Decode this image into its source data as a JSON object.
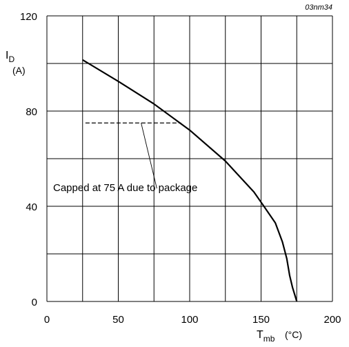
{
  "chart_data": {
    "type": "line",
    "reference": "03nm34",
    "xlabel": {
      "symbol": "T",
      "subscript": "mb",
      "unit": "(°C)"
    },
    "ylabel": {
      "symbol": "I",
      "subscript": "D",
      "unit": "(A)"
    },
    "xlim": [
      0,
      200
    ],
    "ylim": [
      0,
      120
    ],
    "x_ticks": [
      0,
      50,
      100,
      150,
      200
    ],
    "y_ticks": [
      0,
      40,
      80,
      120
    ],
    "x_grid": [
      0,
      25,
      50,
      75,
      100,
      125,
      150,
      175,
      200
    ],
    "y_grid": [
      0,
      20,
      40,
      60,
      80,
      100,
      120
    ],
    "grid": true,
    "series": [
      {
        "x": [
          25,
          50,
          75,
          100,
          125,
          145,
          152,
          160,
          165,
          168,
          170,
          172,
          175
        ],
        "y": [
          101.5,
          92.5,
          83,
          72,
          59,
          46,
          40,
          33,
          25,
          18,
          11,
          6,
          0
        ]
      }
    ],
    "cap_line": {
      "y": 75,
      "x_start": 27,
      "x_end": 94,
      "style": "dashed"
    },
    "annotation": {
      "text": "Capped at 75 A due to package",
      "pointer_from": [
        77,
        47.5
      ],
      "pointer_to": [
        66,
        75
      ]
    }
  }
}
